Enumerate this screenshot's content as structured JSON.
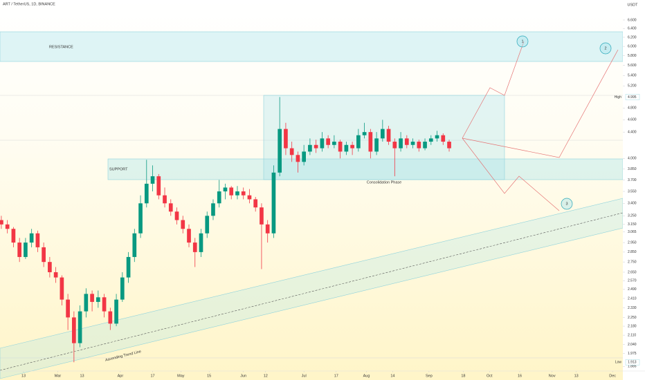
{
  "chart_data": {
    "type": "candlestick",
    "title": "ART / TetherUS, 1D, BINANCE",
    "currency": "USDT",
    "log_scale": true,
    "up_color": "#089981",
    "down_color": "#f23645",
    "xlim": [
      -11.66,
      297.1
    ],
    "xticks": [
      {
        "value": 0,
        "label": "13"
      },
      {
        "value": 17,
        "label": "Mar"
      },
      {
        "value": 29,
        "label": "13"
      },
      {
        "value": 48,
        "label": "Apr"
      },
      {
        "value": 64,
        "label": "17"
      },
      {
        "value": 78,
        "label": "May"
      },
      {
        "value": 92,
        "label": "15"
      },
      {
        "value": 109,
        "label": "Jun"
      },
      {
        "value": 120,
        "label": "12"
      },
      {
        "value": 139,
        "label": "Jul"
      },
      {
        "value": 155,
        "label": "17"
      },
      {
        "value": 170,
        "label": "Aug"
      },
      {
        "value": 183,
        "label": "14"
      },
      {
        "value": 201,
        "label": "Sep"
      },
      {
        "value": 218,
        "label": "18"
      },
      {
        "value": 231,
        "label": "Oct"
      },
      {
        "value": 246,
        "label": "16"
      },
      {
        "value": 262,
        "label": "Nov"
      },
      {
        "value": 274,
        "label": "13"
      },
      {
        "value": 292,
        "label": "Dec"
      }
    ],
    "ylim": [
      1.858,
      7.096
    ],
    "yticks": [
      {
        "value": 6.6,
        "label": "6.600"
      },
      {
        "value": 6.4,
        "label": "6.400"
      },
      {
        "value": 6.2,
        "label": "6.200"
      },
      {
        "value": 6.0,
        "label": "6.000"
      },
      {
        "value": 5.8,
        "label": "5.800"
      },
      {
        "value": 5.6,
        "label": "5.600"
      },
      {
        "value": 5.4,
        "label": "5.400"
      },
      {
        "value": 5.2,
        "label": "5.200"
      },
      {
        "value": 4.8,
        "label": "4.800"
      },
      {
        "value": 4.6,
        "label": "4.600"
      },
      {
        "value": 4.4,
        "label": "4.400"
      },
      {
        "value": 4.0,
        "label": "4.000"
      },
      {
        "value": 3.85,
        "label": "3.850"
      },
      {
        "value": 3.7,
        "label": "3.700"
      },
      {
        "value": 3.55,
        "label": "3.550"
      },
      {
        "value": 3.4,
        "label": "3.400"
      },
      {
        "value": 3.25,
        "label": "3.250"
      },
      {
        "value": 3.15,
        "label": "3.150"
      },
      3.065,
      {
        "value": 2.95,
        "label": "2.950"
      },
      {
        "value": 2.85,
        "label": "2.850"
      },
      {
        "value": 2.75,
        "label": "2.750"
      },
      {
        "value": 2.65,
        "label": "2.650"
      },
      {
        "value": 2.57,
        "label": "2.570"
      },
      {
        "value": 2.49,
        "label": "2.490"
      },
      {
        "value": 2.41,
        "label": "2.410"
      },
      {
        "value": 2.33,
        "label": "2.330"
      },
      {
        "value": 2.25,
        "label": "2.250"
      },
      {
        "value": 2.18,
        "label": "2.180"
      },
      {
        "value": 2.11,
        "label": "2.110"
      },
      {
        "value": 2.04,
        "label": "2.040"
      },
      1.975,
      1.885
    ],
    "price_labels": [
      {
        "name": "High",
        "value": 4.995
      },
      {
        "name": "Low",
        "value": 1.913
      }
    ],
    "annotations": {
      "resistance": "RESISTANCE",
      "support": "SUPPORT",
      "consolidation": "Consolidation Phase",
      "trend": "Ascending Trend Line",
      "target_1": "1",
      "target_2": "2",
      "target_3": "3"
    },
    "x": [
      -11,
      -8,
      -5,
      -2,
      1,
      4,
      7,
      10,
      13,
      16,
      19,
      22,
      25,
      28,
      31,
      34,
      37,
      40,
      43,
      46,
      49,
      52,
      55,
      58,
      61,
      64,
      67,
      70,
      73,
      76,
      79,
      82,
      85,
      88,
      91,
      94,
      97,
      100,
      103,
      106,
      109,
      112,
      115,
      118,
      121,
      124,
      127,
      130,
      133,
      136,
      139,
      142,
      145,
      148,
      151,
      154,
      157,
      160,
      163,
      166,
      169,
      172,
      175,
      178,
      181,
      184,
      187,
      190,
      193,
      196,
      199,
      202,
      205,
      208,
      211
    ],
    "ohlc": [
      [
        3.2,
        3.25,
        3.1,
        3.15
      ],
      [
        3.15,
        3.2,
        3.05,
        3.1
      ],
      [
        3.1,
        3.12,
        2.9,
        2.95
      ],
      [
        2.95,
        3.0,
        2.75,
        2.8
      ],
      [
        2.8,
        3.0,
        2.78,
        2.95
      ],
      [
        2.95,
        3.1,
        2.9,
        3.05
      ],
      [
        3.05,
        3.08,
        2.85,
        2.9
      ],
      [
        2.9,
        2.95,
        2.7,
        2.75
      ],
      [
        2.75,
        2.8,
        2.6,
        2.65
      ],
      [
        2.65,
        2.7,
        2.55,
        2.6
      ],
      [
        2.6,
        2.62,
        2.35,
        2.4
      ],
      [
        2.4,
        2.45,
        2.15,
        2.25
      ],
      [
        2.25,
        2.3,
        1.913,
        2.05
      ],
      [
        2.05,
        2.35,
        2.02,
        2.3
      ],
      [
        2.3,
        2.5,
        2.25,
        2.45
      ],
      [
        2.45,
        2.48,
        2.3,
        2.38
      ],
      [
        2.38,
        2.48,
        2.33,
        2.42
      ],
      [
        2.42,
        2.45,
        2.25,
        2.3
      ],
      [
        2.3,
        2.33,
        2.15,
        2.2
      ],
      [
        2.2,
        2.45,
        2.18,
        2.4
      ],
      [
        2.4,
        2.65,
        2.38,
        2.6
      ],
      [
        2.6,
        2.85,
        2.55,
        2.8
      ],
      [
        2.8,
        3.1,
        2.75,
        3.05
      ],
      [
        3.05,
        3.5,
        3.0,
        3.4
      ],
      [
        3.4,
        3.98,
        3.35,
        3.65
      ],
      [
        3.65,
        3.9,
        3.55,
        3.75
      ],
      [
        3.75,
        3.78,
        3.45,
        3.5
      ],
      [
        3.5,
        3.6,
        3.35,
        3.4
      ],
      [
        3.4,
        3.45,
        3.25,
        3.3
      ],
      [
        3.3,
        3.35,
        3.15,
        3.2
      ],
      [
        3.2,
        3.25,
        3.05,
        3.1
      ],
      [
        3.1,
        3.15,
        2.9,
        2.95
      ],
      [
        2.95,
        3.0,
        2.7,
        2.85
      ],
      [
        2.85,
        3.1,
        2.8,
        3.05
      ],
      [
        3.05,
        3.3,
        3.0,
        3.25
      ],
      [
        3.25,
        3.45,
        3.2,
        3.4
      ],
      [
        3.4,
        3.7,
        3.35,
        3.55
      ],
      [
        3.55,
        3.65,
        3.45,
        3.6
      ],
      [
        3.6,
        3.62,
        3.45,
        3.5
      ],
      [
        3.5,
        3.62,
        3.45,
        3.55
      ],
      [
        3.55,
        3.6,
        3.45,
        3.5
      ],
      [
        3.5,
        3.58,
        3.4,
        3.45
      ],
      [
        3.45,
        3.48,
        3.3,
        3.35
      ],
      [
        3.35,
        3.4,
        2.68,
        3.15
      ],
      [
        3.15,
        3.2,
        2.95,
        3.05
      ],
      [
        3.05,
        3.9,
        3.0,
        3.8
      ],
      [
        3.8,
        4.995,
        3.75,
        4.45
      ],
      [
        4.45,
        4.55,
        4.05,
        4.15
      ],
      [
        4.15,
        4.25,
        3.95,
        4.05
      ],
      [
        4.05,
        4.1,
        3.8,
        3.95
      ],
      [
        3.95,
        4.2,
        3.9,
        4.1
      ],
      [
        4.1,
        4.3,
        4.05,
        4.2
      ],
      [
        4.2,
        4.28,
        4.08,
        4.15
      ],
      [
        4.15,
        4.4,
        4.1,
        4.3
      ],
      [
        4.3,
        4.35,
        4.15,
        4.2
      ],
      [
        4.2,
        4.35,
        4.15,
        4.25
      ],
      [
        4.25,
        4.28,
        4.0,
        4.1
      ],
      [
        4.1,
        4.25,
        4.05,
        4.2
      ],
      [
        4.2,
        4.25,
        4.05,
        4.15
      ],
      [
        4.15,
        4.45,
        4.1,
        4.35
      ],
      [
        4.35,
        4.55,
        4.3,
        4.4
      ],
      [
        4.4,
        4.45,
        4.0,
        4.1
      ],
      [
        4.1,
        4.4,
        4.05,
        4.3
      ],
      [
        4.3,
        4.6,
        4.25,
        4.45
      ],
      [
        4.45,
        4.5,
        4.2,
        4.25
      ],
      [
        4.25,
        4.3,
        3.75,
        4.15
      ],
      [
        4.15,
        4.4,
        4.1,
        4.3
      ],
      [
        4.3,
        4.35,
        4.15,
        4.2
      ],
      [
        4.2,
        4.3,
        4.15,
        4.25
      ],
      [
        4.25,
        4.28,
        4.1,
        4.15
      ],
      [
        4.15,
        4.3,
        4.12,
        4.25
      ],
      [
        4.25,
        4.35,
        4.2,
        4.3
      ],
      [
        4.3,
        4.42,
        4.25,
        4.35
      ],
      [
        4.35,
        4.38,
        4.2,
        4.25
      ],
      [
        4.25,
        4.28,
        4.1,
        4.15
      ]
    ]
  }
}
